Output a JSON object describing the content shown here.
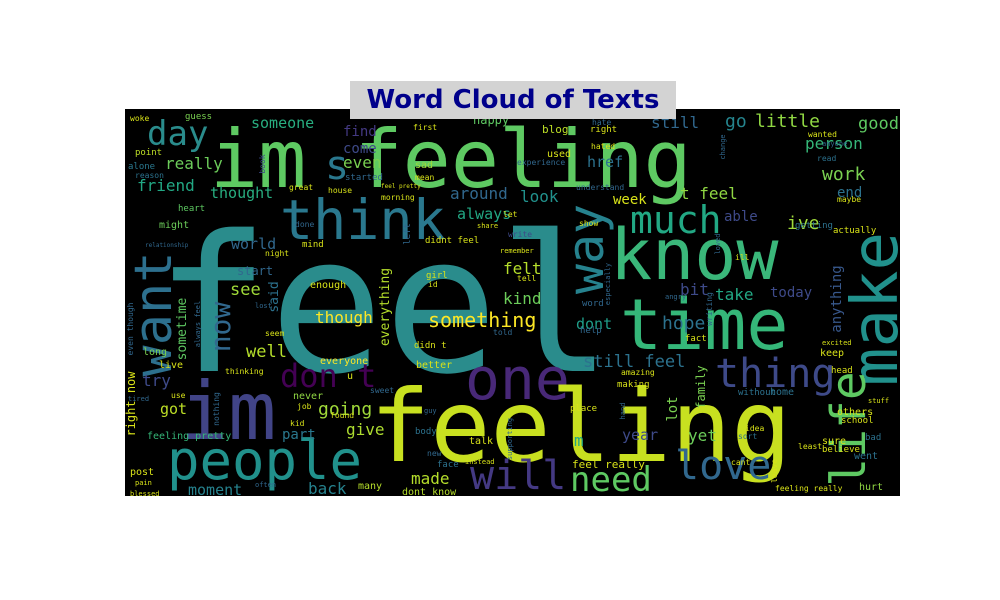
{
  "chart_data": {
    "type": "wordcloud",
    "title": "Word Cloud of Texts",
    "background": "#000000",
    "colormap": "viridis",
    "title_color": "#00008b",
    "title_background": "#d3d3d3",
    "words": [
      {
        "text": "feel",
        "weight": 100,
        "color": "#2a8c8c"
      },
      {
        "text": "feeling",
        "weight": 70,
        "color": "#c8e020"
      },
      {
        "text": "im feeling",
        "weight": 62,
        "color": "#5ec962"
      },
      {
        "text": "know",
        "weight": 55,
        "color": "#3ab77a"
      },
      {
        "text": "time",
        "weight": 52,
        "color": "#35b779"
      },
      {
        "text": "im",
        "weight": 50,
        "color": "#414487"
      },
      {
        "text": "make",
        "weight": 48,
        "color": "#21918c"
      },
      {
        "text": "think",
        "weight": 42,
        "color": "#2a788e"
      },
      {
        "text": "want",
        "weight": 40,
        "color": "#2d708e"
      },
      {
        "text": "people",
        "weight": 38,
        "color": "#21918c"
      },
      {
        "text": "one",
        "weight": 36,
        "color": "#482878"
      },
      {
        "text": "way",
        "weight": 34,
        "color": "#26828e"
      },
      {
        "text": "life",
        "weight": 33,
        "color": "#5ec962"
      },
      {
        "text": "much",
        "weight": 28,
        "color": "#22a884"
      },
      {
        "text": "thing",
        "weight": 27,
        "color": "#3e4a89"
      },
      {
        "text": "love",
        "weight": 27,
        "color": "#31688e"
      },
      {
        "text": "will",
        "weight": 26,
        "color": "#443983"
      },
      {
        "text": "need",
        "weight": 26,
        "color": "#5ec962"
      },
      {
        "text": "day",
        "weight": 25,
        "color": "#2a8c8c"
      },
      {
        "text": "don t",
        "weight": 25,
        "color": "#440154"
      },
      {
        "text": "now",
        "weight": 22,
        "color": "#31688e"
      },
      {
        "text": "s",
        "weight": 22,
        "color": "#2a788e"
      },
      {
        "text": "something",
        "weight": 16,
        "color": "#fde725"
      },
      {
        "text": "see",
        "weight": 14,
        "color": "#a0da39"
      },
      {
        "text": "really",
        "weight": 14,
        "color": "#6ccd5a"
      },
      {
        "text": "world",
        "weight": 14,
        "color": "#31688e"
      },
      {
        "text": "little",
        "weight": 14,
        "color": "#90d743"
      },
      {
        "text": "work",
        "weight": 14,
        "color": "#7ad151"
      },
      {
        "text": "hope",
        "weight": 14,
        "color": "#2c728e"
      },
      {
        "text": "going",
        "weight": 14,
        "color": "#a0da39"
      },
      {
        "text": "well",
        "weight": 14,
        "color": "#b5de2b"
      },
      {
        "text": "good",
        "weight": 14,
        "color": "#5ec962"
      },
      {
        "text": "go",
        "weight": 14,
        "color": "#25858e"
      },
      {
        "text": "back",
        "weight": 14,
        "color": "#26828e"
      },
      {
        "text": "ive",
        "weight": 14,
        "color": "#9fda3a"
      },
      {
        "text": "friend",
        "weight": 13,
        "color": "#22a884"
      },
      {
        "text": "moment",
        "weight": 13,
        "color": "#26828e"
      },
      {
        "text": "person",
        "weight": 13,
        "color": "#35b779"
      },
      {
        "text": "still feel",
        "weight": 13,
        "color": "#2c728e"
      },
      {
        "text": "always",
        "weight": 13,
        "color": "#22a884"
      },
      {
        "text": "thought",
        "weight": 12,
        "color": "#28ae80"
      },
      {
        "text": "someone",
        "weight": 12,
        "color": "#28ae80"
      },
      {
        "text": "even",
        "weight": 12,
        "color": "#7ad151"
      },
      {
        "text": "around",
        "weight": 12,
        "color": "#31688e"
      },
      {
        "text": "look",
        "weight": 12,
        "color": "#21918c"
      },
      {
        "text": "kind",
        "weight": 12,
        "color": "#6ccd5a"
      },
      {
        "text": "felt",
        "weight": 12,
        "color": "#b5de2b"
      },
      {
        "text": "take",
        "weight": 12,
        "color": "#22a884"
      },
      {
        "text": "today",
        "weight": 12,
        "color": "#3e4a89"
      },
      {
        "text": "dont",
        "weight": 12,
        "color": "#1f9e89"
      },
      {
        "text": "though",
        "weight": 12,
        "color": "#fde725"
      },
      {
        "text": "made",
        "weight": 12,
        "color": "#b5de2b"
      },
      {
        "text": "give",
        "weight": 12,
        "color": "#addc30"
      },
      {
        "text": "t feel",
        "weight": 12,
        "color": "#90d743"
      },
      {
        "text": "week",
        "weight": 12,
        "color": "#d8e219"
      },
      {
        "text": "anything",
        "weight": 12,
        "color": "#38588c"
      },
      {
        "text": "try",
        "weight": 12,
        "color": "#3e4a89"
      },
      {
        "text": "got",
        "weight": 12,
        "color": "#bddf26"
      },
      {
        "text": "part",
        "weight": 12,
        "color": "#2a788e"
      },
      {
        "text": "year",
        "weight": 12,
        "color": "#3e4a89"
      },
      {
        "text": "yet",
        "weight": 12,
        "color": "#6ccd5a"
      },
      {
        "text": "bit",
        "weight": 12,
        "color": "#3e4a89"
      },
      {
        "text": "still",
        "weight": 12,
        "color": "#31688e"
      },
      {
        "text": "come",
        "weight": 11,
        "color": "#3e4a89"
      },
      {
        "text": "find",
        "weight": 11,
        "color": "#443983"
      },
      {
        "text": "href",
        "weight": 11,
        "color": "#2c728e"
      },
      {
        "text": "end",
        "weight": 11,
        "color": "#2c728e"
      },
      {
        "text": "able",
        "weight": 11,
        "color": "#3e4a89"
      },
      {
        "text": "start",
        "weight": 9,
        "color": "#31688e"
      },
      {
        "text": "sometime",
        "weight": 10,
        "color": "#5ec962"
      },
      {
        "text": "everything",
        "weight": 10,
        "color": "#b5de2b"
      },
      {
        "text": "said",
        "weight": 10,
        "color": "#2c728e"
      },
      {
        "text": "right now",
        "weight": 10,
        "color": "#d8e219"
      },
      {
        "text": "lot",
        "weight": 10,
        "color": "#7ad151"
      },
      {
        "text": "family",
        "weight": 10,
        "color": "#7ad151"
      },
      {
        "text": "m",
        "weight": 12,
        "color": "#22a884"
      },
      {
        "text": "feel really",
        "weight": 9,
        "color": "#d8e219"
      },
      {
        "text": "dont know",
        "weight": 8,
        "color": "#b5de2b"
      },
      {
        "text": "feeling pretty",
        "weight": 8,
        "color": "#35b779"
      },
      {
        "text": "post",
        "weight": 8,
        "color": "#d8e219"
      },
      {
        "text": "blog",
        "weight": 8,
        "color": "#bddf26"
      },
      {
        "text": "used",
        "weight": 8,
        "color": "#d8e219"
      },
      {
        "text": "sad",
        "weight": 8,
        "color": "#9fda3a"
      },
      {
        "text": "happy",
        "weight": 8,
        "color": "#5ec962"
      },
      {
        "text": "might",
        "weight": 8,
        "color": "#6ccd5a"
      },
      {
        "text": "heart",
        "weight": 7,
        "color": "#5ec962"
      },
      {
        "text": "alone",
        "weight": 7,
        "color": "#2a788e"
      },
      {
        "text": "point",
        "weight": 7,
        "color": "#bddf26"
      },
      {
        "text": "guess",
        "weight": 7,
        "color": "#7ad151"
      },
      {
        "text": "woke",
        "weight": 7,
        "color": "#d8e219"
      },
      {
        "text": "book",
        "weight": 7,
        "color": "#3e4a89"
      },
      {
        "text": "reason",
        "weight": 7,
        "color": "#2c728e"
      },
      {
        "text": "enough",
        "weight": 7,
        "color": "#d8e219"
      },
      {
        "text": "everyone",
        "weight": 7,
        "color": "#fde725"
      },
      {
        "text": "never",
        "weight": 7,
        "color": "#90d743"
      },
      {
        "text": "better",
        "weight": 7,
        "color": "#d8e219"
      },
      {
        "text": "many",
        "weight": 7,
        "color": "#b5de2b"
      },
      {
        "text": "live",
        "weight": 7,
        "color": "#d8e219"
      },
      {
        "text": "long",
        "weight": 7,
        "color": "#7ad151"
      },
      {
        "text": "keep",
        "weight": 7,
        "color": "#d8e219"
      },
      {
        "text": "others",
        "weight": 7,
        "color": "#d8e219"
      },
      {
        "text": "school",
        "weight": 7,
        "color": "#d8e219"
      },
      {
        "text": "went",
        "weight": 7,
        "color": "#2c728e"
      },
      {
        "text": "hurt",
        "weight": 7,
        "color": "#90d743"
      },
      {
        "text": "sure",
        "weight": 7,
        "color": "#d8e219"
      },
      {
        "text": "maybe",
        "weight": 6,
        "color": "#d8e219"
      },
      {
        "text": "wanted",
        "weight": 6,
        "color": "#d8e219"
      },
      {
        "text": "read",
        "weight": 6,
        "color": "#2c728e"
      },
      {
        "text": "actually",
        "weight": 7,
        "color": "#d8e219"
      },
      {
        "text": "getting",
        "weight": 7,
        "color": "#2c728e"
      },
      {
        "text": "place",
        "weight": 7,
        "color": "#d8e219"
      },
      {
        "text": "making",
        "weight": 7,
        "color": "#d8e219"
      },
      {
        "text": "home",
        "weight": 7,
        "color": "#2c728e"
      },
      {
        "text": "without",
        "weight": 7,
        "color": "#2c728e"
      },
      {
        "text": "talk",
        "weight": 7,
        "color": "#d8e219"
      },
      {
        "text": "girl",
        "weight": 6,
        "color": "#d8e219"
      },
      {
        "text": "body",
        "weight": 6,
        "color": "#2c728e"
      },
      {
        "text": "face",
        "weight": 6,
        "color": "#2c728e"
      },
      {
        "text": "help",
        "weight": 6,
        "color": "#31688e"
      },
      {
        "text": "word",
        "weight": 6,
        "color": "#31688e"
      },
      {
        "text": "fact",
        "weight": 6,
        "color": "#d8e219"
      },
      {
        "text": "amazing",
        "weight": 6,
        "color": "#d8e219"
      },
      {
        "text": "experience",
        "weight": 6,
        "color": "#31688e"
      },
      {
        "text": "mean",
        "weight": 6,
        "color": "#d8e219"
      },
      {
        "text": "started",
        "weight": 6,
        "color": "#31688e"
      },
      {
        "text": "mind",
        "weight": 6,
        "color": "#d8e219"
      },
      {
        "text": "night",
        "weight": 5,
        "color": "#d8e219"
      },
      {
        "text": "didn t",
        "weight": 6,
        "color": "#d8e219"
      },
      {
        "text": "didnt feel",
        "weight": 6,
        "color": "#d8e219"
      },
      {
        "text": "remember",
        "weight": 5,
        "color": "#d8e219"
      },
      {
        "text": "share",
        "weight": 5,
        "color": "#d8e219"
      },
      {
        "text": "write",
        "weight": 5,
        "color": "#3e4a89"
      },
      {
        "text": "seem",
        "weight": 5,
        "color": "#d8e219"
      },
      {
        "text": "lost",
        "weight": 5,
        "color": "#31688e"
      },
      {
        "text": "told",
        "weight": 5,
        "color": "#31688e"
      },
      {
        "text": "job",
        "weight": 5,
        "color": "#d8e219"
      },
      {
        "text": "found",
        "weight": 5,
        "color": "#d8e219"
      },
      {
        "text": "sweet",
        "weight": 5,
        "color": "#31688e"
      },
      {
        "text": "kid",
        "weight": 5,
        "color": "#d8e219"
      },
      {
        "text": "use",
        "weight": 5,
        "color": "#d8e219"
      },
      {
        "text": "tired",
        "weight": 4,
        "color": "#31688e"
      },
      {
        "text": "blessed",
        "weight": 5,
        "color": "#d8e219"
      },
      {
        "text": "pain",
        "weight": 5,
        "color": "#d8e219"
      },
      {
        "text": "often",
        "weight": 5,
        "color": "#31688e"
      },
      {
        "text": "instead",
        "weight": 4,
        "color": "#d8e219"
      },
      {
        "text": "new",
        "weight": 5,
        "color": "#31688e"
      },
      {
        "text": "let",
        "weight": 5,
        "color": "#d8e219"
      },
      {
        "text": "tell",
        "weight": 5,
        "color": "#d8e219"
      },
      {
        "text": "cant",
        "weight": 5,
        "color": "#d8e219"
      },
      {
        "text": "idea",
        "weight": 5,
        "color": "#d8e219"
      },
      {
        "text": "sort",
        "weight": 5,
        "color": "#2c728e"
      },
      {
        "text": "believe",
        "weight": 6,
        "color": "#d8e219"
      },
      {
        "text": "bad",
        "weight": 5,
        "color": "#2c728e"
      },
      {
        "text": "stuff",
        "weight": 4,
        "color": "#d8e219"
      },
      {
        "text": "excited",
        "weight": 4,
        "color": "#d8e219"
      },
      {
        "text": "head",
        "weight": 5,
        "color": "#d8e219"
      },
      {
        "text": "feeling really",
        "weight": 5,
        "color": "#d8e219"
      },
      {
        "text": "first",
        "weight": 5,
        "color": "#d8e219"
      },
      {
        "text": "hate",
        "weight": 5,
        "color": "#31688e"
      },
      {
        "text": "hated",
        "weight": 5,
        "color": "#d8e219"
      },
      {
        "text": "right",
        "weight": 5,
        "color": "#d8e219"
      },
      {
        "text": "understand",
        "weight": 5,
        "color": "#31688e"
      },
      {
        "text": "show",
        "weight": 5,
        "color": "#d8e219"
      },
      {
        "text": "house",
        "weight": 5,
        "color": "#d8e219"
      },
      {
        "text": "great",
        "weight": 5,
        "color": "#d8e219"
      },
      {
        "text": "morning",
        "weight": 5,
        "color": "#d8e219"
      },
      {
        "text": "feel pretty",
        "weight": 4,
        "color": "#d8e219"
      },
      {
        "text": "done",
        "weight": 5,
        "color": "#31688e"
      },
      {
        "text": "relationship",
        "weight": 4,
        "color": "#31688e"
      },
      {
        "text": "always feel",
        "weight": 5,
        "color": "#31688e"
      },
      {
        "text": "ill",
        "weight": 5,
        "color": "#d8e219"
      },
      {
        "text": "loved",
        "weight": 5,
        "color": "#31688e"
      },
      {
        "text": "angry",
        "weight": 5,
        "color": "#31688e"
      },
      {
        "text": "writing",
        "weight": 5,
        "color": "#31688e"
      },
      {
        "text": "especially",
        "weight": 5,
        "color": "#31688e"
      },
      {
        "text": "thinking",
        "weight": 5,
        "color": "#d8e219"
      },
      {
        "text": "nothing",
        "weight": 5,
        "color": "#31688e"
      },
      {
        "text": "even though",
        "weight": 5,
        "color": "#31688e"
      },
      {
        "text": "supporting",
        "weight": 4,
        "color": "#31688e"
      },
      {
        "text": "guy",
        "weight": 5,
        "color": "#31688e"
      },
      {
        "text": "hand",
        "weight": 5,
        "color": "#31688e"
      },
      {
        "text": "leave",
        "weight": 5,
        "color": "#d8e219"
      },
      {
        "text": "least",
        "weight": 5,
        "color": "#d8e219"
      },
      {
        "text": "change",
        "weight": 5,
        "color": "#31688e"
      },
      {
        "text": "anyone",
        "weight": 4,
        "color": "#31688e"
      },
      {
        "text": "id",
        "weight": 5,
        "color": "#d8e219"
      },
      {
        "text": "left",
        "weight": 5,
        "color": "#31688e"
      },
      {
        "text": "u",
        "weight": 5,
        "color": "#d8e219"
      }
    ]
  }
}
